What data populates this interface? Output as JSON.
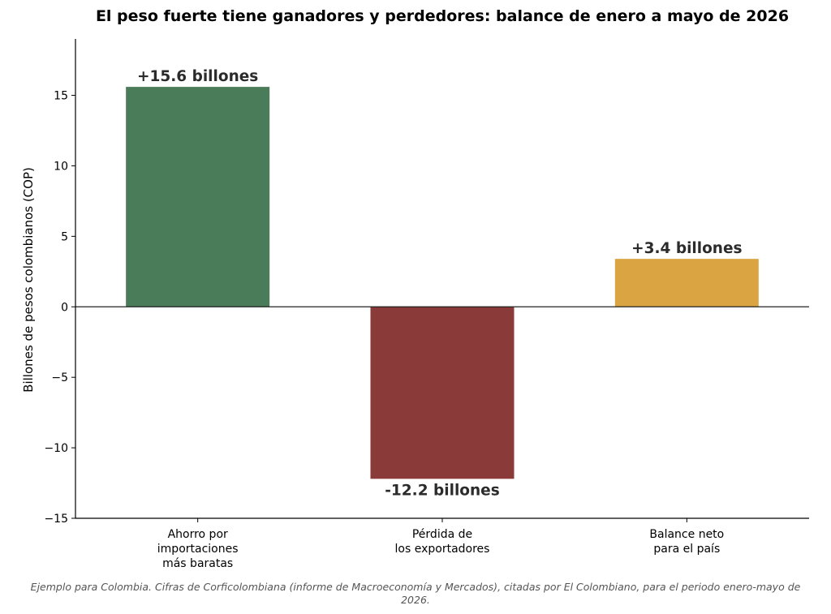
{
  "chart_data": {
    "type": "bar",
    "title": "El peso fuerte tiene ganadores y perdedores: balance de enero a mayo de 2026",
    "ylabel": "Billones de pesos colombianos (COP)",
    "xlabel": "",
    "categories": [
      [
        "Ahorro por",
        "importaciones",
        "más baratas"
      ],
      [
        "Pérdida de",
        "los exportadores"
      ],
      [
        "Balance neto",
        "para el país"
      ]
    ],
    "values": [
      15.6,
      -12.2,
      3.4
    ],
    "data_labels": [
      "+15.6 billones",
      "-12.2 billones",
      "+3.4 billones"
    ],
    "colors": [
      "#4a7c59",
      "#8b3a3a",
      "#d9a441"
    ],
    "ylim": [
      -15,
      19
    ],
    "yticks": [
      15,
      10,
      5,
      0,
      -5,
      -10,
      -15
    ],
    "ytick_labels": [
      "15",
      "10",
      "5",
      "0",
      "−5",
      "−10",
      "−15"
    ],
    "grid": false,
    "caption": [
      "Ejemplo para Colombia. Cifras de Corficolombiana (informe de Macroeconomía y Mercados), citadas por El Colombiano, para el periodo enero-mayo de",
      "2026."
    ]
  }
}
